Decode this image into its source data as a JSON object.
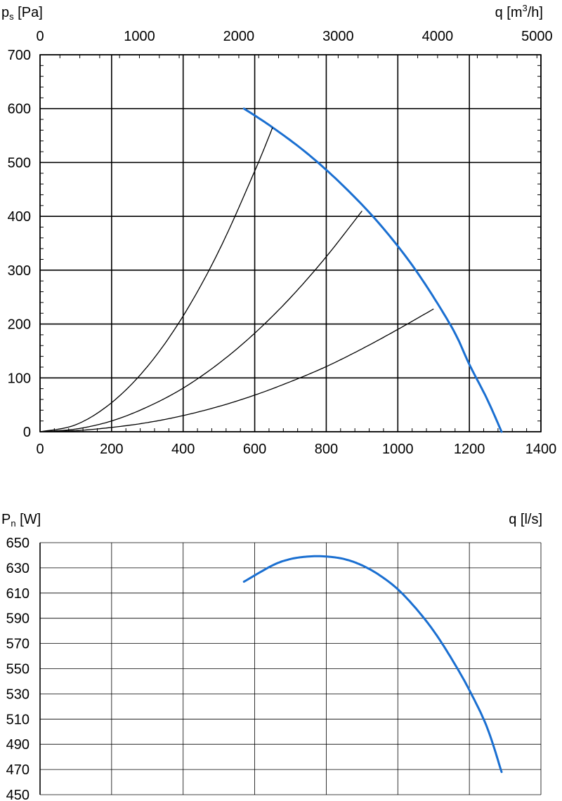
{
  "colors": {
    "fan_curve": "#1a6fd1",
    "system_curves": "#000000",
    "grid": "#000000"
  },
  "chart_data": [
    {
      "type": "line",
      "ylabel_main": "p",
      "ylabel_sub": "s",
      "ylabel_unit": " [Pa]",
      "top_xlabel_main": "q [m",
      "top_xlabel_sup": "3",
      "top_xlabel_unit": "/h]",
      "xlim": [
        0,
        1400
      ],
      "ylim": [
        0,
        700
      ],
      "x_ticks": [
        0,
        200,
        400,
        600,
        800,
        1000,
        1200,
        1400
      ],
      "y_ticks": [
        0,
        100,
        200,
        300,
        400,
        500,
        600,
        700
      ],
      "top_ticks": [
        0,
        1000,
        2000,
        3000,
        4000,
        5000
      ],
      "grid": true,
      "series": [
        {
          "kind": "fan",
          "x": [
            570,
            650,
            750,
            850,
            950,
            1050,
            1150,
            1200,
            1250,
            1290
          ],
          "y": [
            600,
            565,
            515,
            455,
            385,
            300,
            195,
            125,
            60,
            0
          ]
        },
        {
          "kind": "system",
          "x": [
            0,
            100,
            200,
            300,
            400,
            500,
            600,
            650
          ],
          "y": [
            0,
            13,
            54,
            121,
            215,
            336,
            484,
            565
          ]
        },
        {
          "kind": "system",
          "x": [
            0,
            100,
            200,
            300,
            400,
            500,
            600,
            700,
            800,
            900
          ],
          "y": [
            0,
            5,
            20,
            46,
            81,
            127,
            183,
            249,
            325,
            410
          ]
        },
        {
          "kind": "system",
          "x": [
            0,
            100,
            200,
            300,
            400,
            500,
            600,
            700,
            800,
            900,
            1000,
            1100
          ],
          "y": [
            0,
            2,
            8,
            17,
            30,
            47,
            68,
            93,
            121,
            154,
            190,
            228
          ]
        }
      ]
    },
    {
      "type": "line",
      "ylabel_main": "P",
      "ylabel_sub": "n",
      "ylabel_unit": " [W]",
      "xlabel": "q [l/s]",
      "xlim": [
        0,
        1400
      ],
      "ylim": [
        450,
        650
      ],
      "y_ticks": [
        450,
        470,
        490,
        510,
        530,
        550,
        570,
        590,
        610,
        630,
        650
      ],
      "grid": true,
      "series": [
        {
          "kind": "fan",
          "x": [
            570,
            650,
            700,
            750,
            800,
            850,
            900,
            950,
            1000,
            1050,
            1100,
            1150,
            1200,
            1250,
            1290
          ],
          "y": [
            619,
            632,
            637,
            639,
            639,
            637,
            632,
            624,
            613,
            598,
            580,
            558,
            533,
            503,
            468
          ]
        }
      ]
    }
  ]
}
